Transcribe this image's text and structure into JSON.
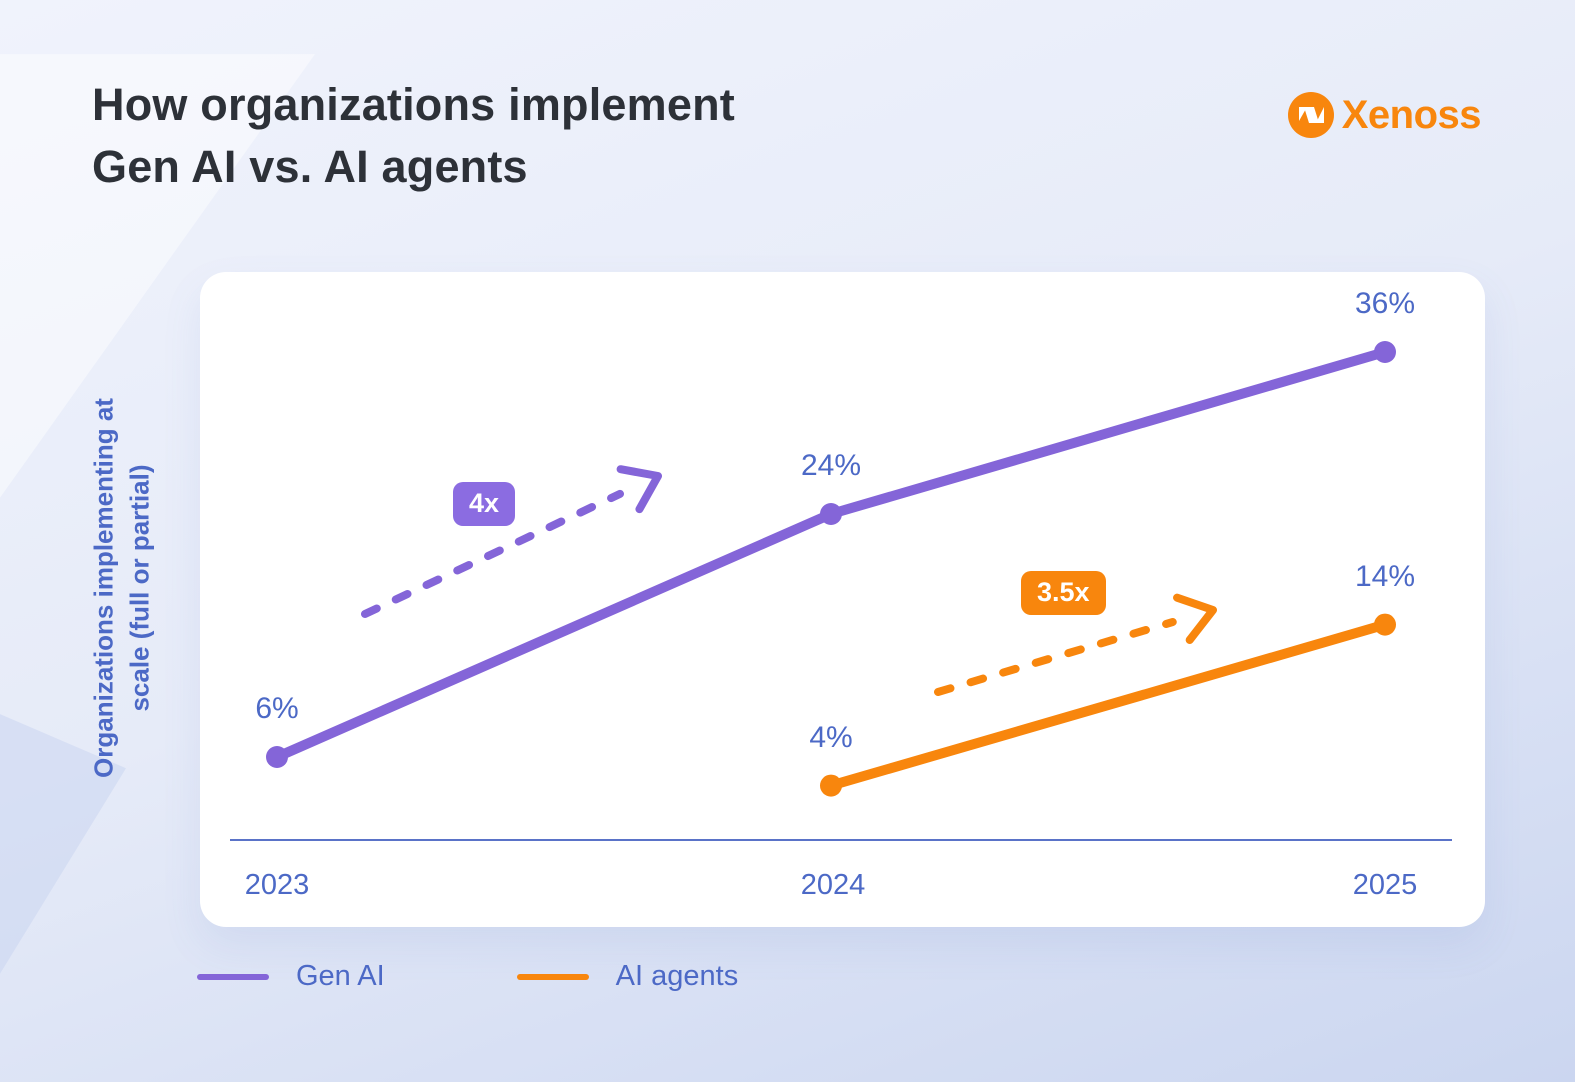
{
  "header": {
    "title_line1": "How organizations implement",
    "title_line2": "Gen AI vs. AI agents"
  },
  "logo": {
    "name": "Xenoss",
    "color": "#F8860D"
  },
  "colors": {
    "background_top": "#F0F3FC",
    "background_bottom": "#CBD6F0",
    "card": "#FFFFFF",
    "title_text": "#2D3138",
    "axis_text": "#4C69C6",
    "axis_line": "#5A73C8",
    "gen_ai": "#8465D8",
    "ai_agents": "#F8860D"
  },
  "y_axis": {
    "label_line1": "Organizations implementing at",
    "label_line2": "scale (full or partial)"
  },
  "chart_data": {
    "type": "line",
    "title": "How organizations implement Gen AI vs. AI agents",
    "xlabel": "",
    "ylabel": "Organizations implementing at scale (full or partial)",
    "x": [
      2023,
      2024,
      2025
    ],
    "ylim": [
      0,
      40
    ],
    "grid": false,
    "legend_position": "bottom-left",
    "series": [
      {
        "name": "Gen AI",
        "color": "#8465D8",
        "x": [
          2023,
          2024,
          2025
        ],
        "values": [
          6,
          24,
          36
        ],
        "point_labels": [
          "6%",
          "24%",
          "36%"
        ],
        "growth_multiplier": "4x",
        "badge_color": "#8B6CE1"
      },
      {
        "name": "AI agents",
        "color": "#F8860D",
        "x": [
          2024,
          2025
        ],
        "values": [
          4,
          14
        ],
        "point_labels": [
          "4%",
          "14%"
        ],
        "growth_multiplier": "3.5x",
        "badge_color": "#F8860D"
      }
    ]
  },
  "legend": {
    "items": [
      {
        "label": "Gen AI",
        "color": "#8465D8"
      },
      {
        "label": "AI agents",
        "color": "#F8860D"
      }
    ]
  }
}
